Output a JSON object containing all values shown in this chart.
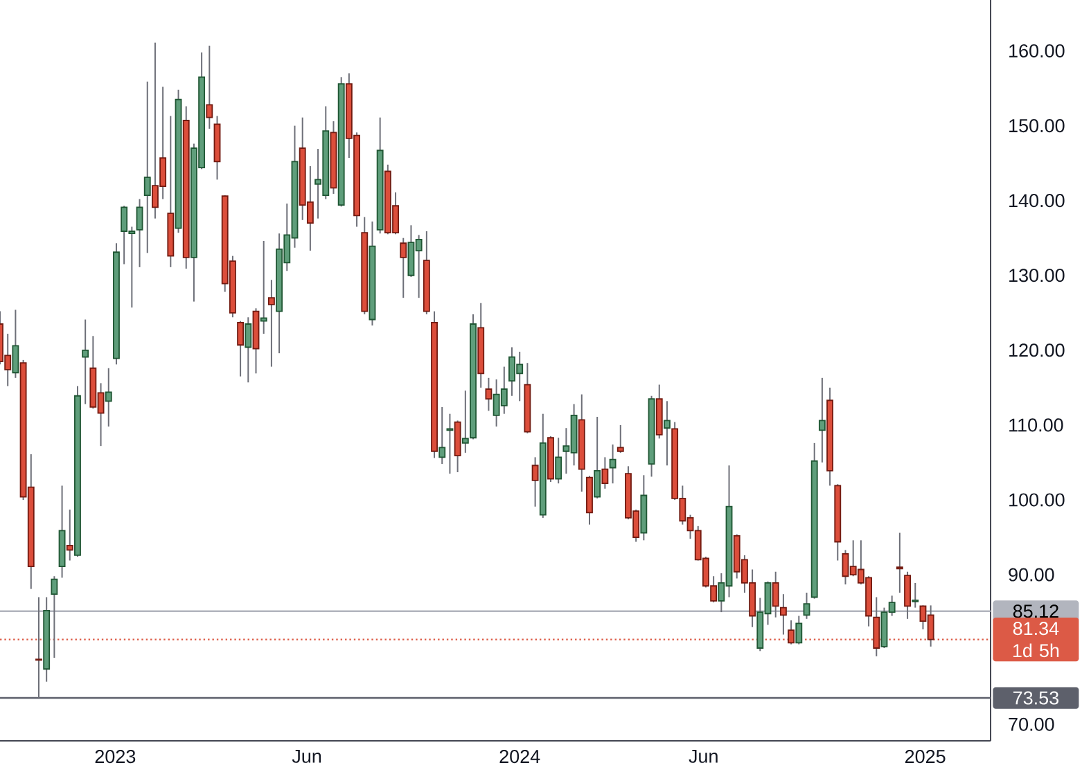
{
  "chart_data": {
    "type": "candlestick",
    "x": [
      "2022-09-19",
      "2022-09-26",
      "2022-10-03",
      "2022-10-10",
      "2022-10-17",
      "2022-10-24",
      "2022-10-31",
      "2022-11-07",
      "2022-11-14",
      "2022-11-21",
      "2022-11-28",
      "2022-12-05",
      "2022-12-12",
      "2022-12-19",
      "2022-12-26",
      "2023-01-02",
      "2023-01-09",
      "2023-01-16",
      "2023-01-23",
      "2023-01-30",
      "2023-02-06",
      "2023-02-13",
      "2023-02-20",
      "2023-02-27",
      "2023-03-06",
      "2023-03-13",
      "2023-03-20",
      "2023-03-27",
      "2023-04-03",
      "2023-04-10",
      "2023-04-17",
      "2023-04-24",
      "2023-05-01",
      "2023-05-08",
      "2023-05-15",
      "2023-05-22",
      "2023-05-29",
      "2023-06-05",
      "2023-06-12",
      "2023-06-19",
      "2023-06-26",
      "2023-07-03",
      "2023-07-10",
      "2023-07-17",
      "2023-07-24",
      "2023-07-31",
      "2023-08-07",
      "2023-08-14",
      "2023-08-21",
      "2023-08-28",
      "2023-09-04",
      "2023-09-11",
      "2023-09-18",
      "2023-09-25",
      "2023-10-02",
      "2023-10-09",
      "2023-10-16",
      "2023-10-23",
      "2023-10-30",
      "2023-11-06",
      "2023-11-13",
      "2023-11-20",
      "2023-11-27",
      "2023-12-04",
      "2023-12-11",
      "2023-12-18",
      "2023-12-25",
      "2024-01-01",
      "2024-01-08",
      "2024-01-15",
      "2024-01-22",
      "2024-01-29",
      "2024-02-05",
      "2024-02-12",
      "2024-02-19",
      "2024-02-26",
      "2024-03-04",
      "2024-03-11",
      "2024-03-18",
      "2024-03-25",
      "2024-04-01",
      "2024-04-08",
      "2024-04-15",
      "2024-04-22",
      "2024-04-29",
      "2024-05-06",
      "2024-05-13",
      "2024-05-20",
      "2024-05-27",
      "2024-06-03",
      "2024-06-10",
      "2024-06-17",
      "2024-06-24",
      "2024-07-01",
      "2024-07-08",
      "2024-07-15",
      "2024-07-22",
      "2024-07-29",
      "2024-08-05",
      "2024-08-12",
      "2024-08-19",
      "2024-08-26",
      "2024-09-02",
      "2024-09-09",
      "2024-09-16",
      "2024-09-23",
      "2024-09-30",
      "2024-10-07",
      "2024-10-14",
      "2024-10-21",
      "2024-10-28",
      "2024-11-04",
      "2024-11-11",
      "2024-11-18",
      "2024-11-25",
      "2024-12-02",
      "2024-12-09",
      "2024-12-16",
      "2024-12-23",
      "2024-12-30",
      "2025-01-06"
    ],
    "ohlc": [
      [
        123.5,
        125.2,
        118.1,
        118.5
      ],
      [
        119.3,
        122.2,
        115.2,
        117.4
      ],
      [
        117.0,
        125.4,
        116.3,
        120.6
      ],
      [
        118.3,
        118.7,
        100.0,
        100.4
      ],
      [
        101.7,
        106.1,
        88.1,
        91.1
      ],
      [
        78.7,
        87.0,
        73.53,
        78.6
      ],
      [
        77.4,
        87.0,
        75.7,
        85.2
      ],
      [
        87.4,
        89.8,
        78.9,
        89.4
      ],
      [
        91.1,
        101.9,
        89.6,
        95.9
      ],
      [
        93.9,
        98.7,
        91.9,
        93.3
      ],
      [
        92.6,
        115.2,
        92.4,
        113.9
      ],
      [
        119.1,
        124.1,
        112.8,
        120.0
      ],
      [
        117.6,
        121.9,
        112.2,
        112.4
      ],
      [
        114.3,
        115.6,
        107.2,
        111.6
      ],
      [
        113.2,
        117.6,
        109.8,
        114.4
      ],
      [
        118.9,
        134.3,
        118.1,
        133.1
      ],
      [
        135.9,
        139.3,
        131.5,
        139.1
      ],
      [
        135.6,
        136.5,
        125.7,
        135.9
      ],
      [
        136.1,
        140.2,
        131.1,
        139.1
      ],
      [
        140.7,
        155.9,
        133.0,
        143.1
      ],
      [
        142.0,
        161.1,
        137.6,
        139.1
      ],
      [
        145.7,
        155.2,
        140.2,
        141.9
      ],
      [
        138.3,
        151.3,
        131.1,
        132.6
      ],
      [
        136.3,
        154.8,
        135.7,
        153.5
      ],
      [
        150.7,
        152.6,
        130.9,
        132.4
      ],
      [
        132.4,
        147.6,
        126.5,
        147.0
      ],
      [
        144.4,
        159.8,
        144.2,
        156.5
      ],
      [
        152.8,
        160.7,
        149.6,
        151.1
      ],
      [
        150.2,
        151.3,
        142.8,
        145.2
      ],
      [
        140.6,
        140.7,
        127.8,
        128.9
      ],
      [
        131.9,
        132.6,
        124.4,
        125.0
      ],
      [
        123.7,
        123.9,
        116.5,
        120.7
      ],
      [
        120.4,
        124.4,
        115.7,
        123.5
      ],
      [
        125.2,
        125.6,
        116.9,
        120.2
      ],
      [
        123.9,
        134.6,
        122.2,
        124.3
      ],
      [
        127.0,
        129.4,
        117.8,
        126.1
      ],
      [
        125.2,
        135.6,
        119.6,
        133.5
      ],
      [
        131.7,
        139.6,
        130.6,
        135.4
      ],
      [
        135.0,
        150.0,
        133.7,
        145.2
      ],
      [
        147.0,
        151.1,
        137.4,
        139.4
      ],
      [
        139.8,
        144.6,
        133.3,
        137.0
      ],
      [
        142.2,
        146.9,
        137.6,
        142.8
      ],
      [
        140.7,
        152.6,
        140.2,
        149.3
      ],
      [
        149.1,
        150.6,
        140.9,
        141.7
      ],
      [
        139.4,
        156.5,
        139.2,
        155.6
      ],
      [
        155.6,
        157.0,
        145.7,
        148.3
      ],
      [
        148.7,
        149.1,
        136.5,
        138.0
      ],
      [
        135.7,
        137.8,
        124.8,
        125.2
      ],
      [
        124.1,
        137.2,
        123.3,
        133.9
      ],
      [
        136.1,
        151.1,
        135.6,
        146.7
      ],
      [
        143.9,
        144.8,
        135.5,
        135.7
      ],
      [
        139.3,
        141.1,
        135.5,
        135.7
      ],
      [
        134.3,
        135.0,
        127.0,
        132.4
      ],
      [
        130.0,
        136.7,
        129.8,
        134.4
      ],
      [
        133.3,
        135.4,
        127.0,
        134.8
      ],
      [
        132.0,
        135.9,
        124.8,
        125.2
      ],
      [
        123.7,
        125.2,
        105.6,
        106.5
      ],
      [
        105.7,
        112.4,
        104.8,
        107.0
      ],
      [
        109.3,
        111.5,
        103.5,
        109.5
      ],
      [
        110.4,
        110.6,
        103.7,
        105.9
      ],
      [
        107.6,
        114.6,
        106.3,
        108.2
      ],
      [
        108.3,
        124.8,
        108.1,
        123.5
      ],
      [
        123.0,
        126.3,
        115.0,
        116.9
      ],
      [
        114.8,
        116.3,
        111.9,
        113.5
      ],
      [
        111.3,
        116.1,
        109.8,
        114.1
      ],
      [
        112.6,
        117.8,
        111.5,
        114.8
      ],
      [
        115.9,
        120.4,
        113.9,
        119.1
      ],
      [
        116.9,
        119.8,
        113.2,
        118.1
      ],
      [
        115.4,
        118.3,
        108.9,
        109.1
      ],
      [
        104.6,
        105.7,
        99.1,
        102.6
      ],
      [
        98.0,
        111.5,
        97.6,
        107.6
      ],
      [
        108.3,
        108.5,
        102.4,
        102.8
      ],
      [
        102.8,
        108.3,
        102.2,
        105.7
      ],
      [
        106.5,
        109.6,
        103.5,
        107.2
      ],
      [
        106.3,
        112.8,
        104.6,
        111.3
      ],
      [
        110.7,
        114.1,
        101.1,
        104.1
      ],
      [
        103.0,
        103.2,
        96.7,
        98.3
      ],
      [
        100.4,
        111.1,
        100.2,
        103.9
      ],
      [
        104.1,
        105.7,
        101.5,
        102.2
      ],
      [
        104.3,
        107.4,
        102.2,
        105.4
      ],
      [
        107.0,
        110.0,
        106.3,
        106.5
      ],
      [
        103.5,
        104.5,
        97.4,
        97.6
      ],
      [
        98.5,
        98.7,
        94.4,
        95.0
      ],
      [
        95.6,
        103.3,
        94.6,
        100.6
      ],
      [
        104.8,
        113.9,
        103.1,
        113.5
      ],
      [
        113.5,
        115.4,
        108.2,
        108.7
      ],
      [
        109.6,
        113.2,
        104.6,
        110.6
      ],
      [
        109.5,
        110.4,
        100.0,
        100.2
      ],
      [
        100.2,
        101.9,
        96.7,
        97.2
      ],
      [
        97.6,
        98.0,
        94.8,
        95.9
      ],
      [
        95.9,
        96.5,
        91.9,
        92.0
      ],
      [
        92.2,
        92.4,
        88.3,
        88.5
      ],
      [
        88.5,
        89.8,
        86.3,
        86.5
      ],
      [
        86.5,
        90.2,
        85.0,
        88.9
      ],
      [
        88.5,
        104.6,
        87.0,
        99.1
      ],
      [
        95.2,
        95.4,
        89.5,
        90.4
      ],
      [
        92.0,
        92.6,
        87.6,
        88.9
      ],
      [
        88.9,
        90.7,
        83.0,
        84.5
      ],
      [
        80.2,
        86.9,
        79.8,
        85.0
      ],
      [
        84.8,
        89.1,
        83.3,
        88.9
      ],
      [
        88.9,
        90.4,
        84.3,
        85.8
      ],
      [
        85.6,
        87.4,
        82.0,
        84.6
      ],
      [
        82.6,
        83.9,
        80.7,
        80.9
      ],
      [
        80.9,
        84.5,
        80.7,
        83.5
      ],
      [
        84.6,
        87.6,
        84.1,
        86.1
      ],
      [
        87.0,
        107.6,
        86.8,
        105.2
      ],
      [
        109.3,
        116.3,
        105.0,
        110.6
      ],
      [
        113.3,
        115.0,
        101.9,
        103.9
      ],
      [
        101.9,
        102.1,
        91.9,
        94.4
      ],
      [
        92.8,
        93.3,
        88.7,
        89.8
      ],
      [
        91.1,
        94.6,
        89.8,
        90.0
      ],
      [
        90.7,
        94.6,
        88.7,
        88.9
      ],
      [
        89.6,
        89.8,
        83.1,
        84.5
      ],
      [
        84.3,
        87.0,
        79.1,
        80.2
      ],
      [
        80.4,
        85.6,
        80.2,
        85.0
      ],
      [
        85.0,
        87.2,
        84.5,
        86.3
      ],
      [
        91.0,
        95.6,
        87.6,
        90.8
      ],
      [
        89.9,
        90.4,
        84.1,
        85.8
      ],
      [
        86.4,
        88.9,
        85.6,
        86.6
      ],
      [
        85.8,
        85.9,
        82.7,
        83.8
      ],
      [
        84.6,
        85.9,
        80.4,
        81.34
      ]
    ],
    "xlim": [
      "2022-09-19",
      "2025-03-01"
    ],
    "xticks": [
      {
        "value": "2023-01-01",
        "label": "2023"
      },
      {
        "value": "2023-06-23",
        "label": "Jun"
      },
      {
        "value": "2024-01-01",
        "label": "2024"
      },
      {
        "value": "2024-06-15",
        "label": "Jun"
      },
      {
        "value": "2025-01-01",
        "label": "2025"
      }
    ],
    "ylim": [
      67.8,
      166.8
    ],
    "yticks": [
      {
        "value": 70,
        "label": "70.00"
      },
      {
        "value": 90,
        "label": "90.00"
      },
      {
        "value": 100,
        "label": "100.00"
      },
      {
        "value": 110,
        "label": "110.00"
      },
      {
        "value": 120,
        "label": "120.00"
      },
      {
        "value": 130,
        "label": "130.00"
      },
      {
        "value": 140,
        "label": "140.00"
      },
      {
        "value": 150,
        "label": "150.00"
      },
      {
        "value": 160,
        "label": "160.00"
      }
    ],
    "ref_lines": [
      {
        "axis": "y",
        "value": 85.12,
        "label": "85.12",
        "color": "#b2b5be",
        "line_style": "solid"
      },
      {
        "axis": "y",
        "value": 81.34,
        "label": "81.34 1d 5h",
        "color": "#dc5a46",
        "line_style": "dotted"
      },
      {
        "axis": "y",
        "value": 73.53,
        "label": "73.53",
        "color": "#5d606b",
        "line_style": "solid"
      }
    ]
  }
}
